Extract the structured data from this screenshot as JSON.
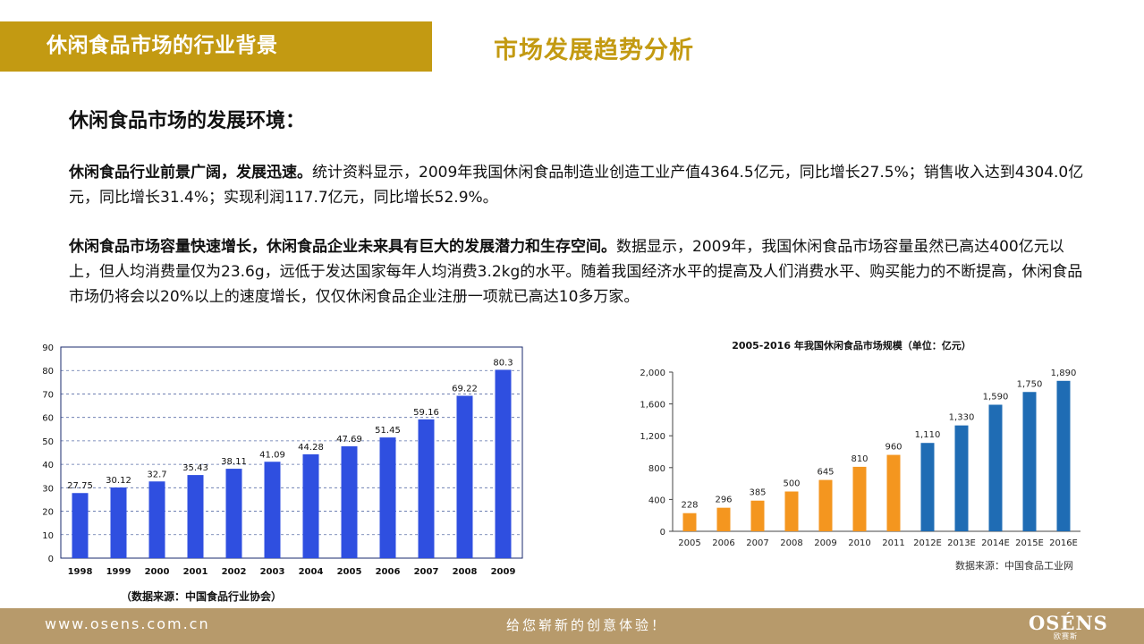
{
  "header": {
    "title": "休闲食品市场的行业背景"
  },
  "page": {
    "title": "市场发展趋势分析",
    "heading": "休闲食品市场的发展环境："
  },
  "paragraphs": [
    {
      "lead": "休闲食品行业前景广阔，发展迅速。",
      "body": "统计资料显示，2009年我国休闲食品制造业创造工业产值4364.5亿元，同比增长27.5%；销售收入达到4304.0亿元，同比增长31.4%；实现利润117.7亿元，同比增长52.9%。"
    },
    {
      "lead": "休闲食品市场容量快速增长，休闲食品企业未来具有巨大的发展潜力和生存空间。",
      "body": "数据显示，2009年，我国休闲食品市场容量虽然已高达400亿元以上，但人均消费量仅为23.6g，远低于发达国家每年人均消费3.2kg的水平。随着我国经济水平的提高及人们消费水平、购买能力的不断提高，休闲食品市场仍将会以20%以上的速度增长，仅仅休闲食品企业注册一项就已高达10多万家。"
    }
  ],
  "chart_data": [
    {
      "type": "bar",
      "title": "",
      "xlabel": "",
      "ylabel": "",
      "categories": [
        "1998",
        "1999",
        "2000",
        "2001",
        "2002",
        "2003",
        "2004",
        "2005",
        "2006",
        "2007",
        "2008",
        "2009"
      ],
      "values": [
        27.75,
        30.12,
        32.7,
        35.43,
        38.11,
        41.09,
        44.28,
        47.69,
        51.45,
        59.16,
        69.22,
        80.3
      ],
      "value_labels": [
        "27.75",
        "30.12",
        "32.7",
        "35.43",
        "38.11",
        "41.09",
        "44.28",
        "47.69",
        "51.45",
        "59.16",
        "69.22",
        "80.3"
      ],
      "y_ticks": [
        0,
        10,
        20,
        30,
        40,
        50,
        60,
        70,
        80,
        90
      ],
      "ylim": [
        0,
        90
      ],
      "grid": true,
      "source": "（数据来源：中国食品行业协会）",
      "colors": {
        "bar": "#2f4fe0",
        "frame": "#1a2a6c",
        "grid": "#5a6fa8"
      }
    },
    {
      "type": "bar",
      "title": "2005-2016 年我国休闲食品市场规模（单位：亿元）",
      "xlabel": "",
      "ylabel": "",
      "categories": [
        "2005",
        "2006",
        "2007",
        "2008",
        "2009",
        "2010",
        "2011",
        "2012E",
        "2013E",
        "2014E",
        "2015E",
        "2016E"
      ],
      "values": [
        228,
        296,
        385,
        500,
        645,
        810,
        960,
        1110,
        1330,
        1590,
        1750,
        1890
      ],
      "value_labels": [
        "228",
        "296",
        "385",
        "500",
        "645",
        "810",
        "960",
        "1,110",
        "1,330",
        "1,590",
        "1,750",
        "1,890"
      ],
      "y_ticks": [
        0,
        400,
        800,
        1200,
        1600,
        2000
      ],
      "y_tick_labels": [
        "0",
        "400",
        "800",
        "1,200",
        "1,600",
        "2,000"
      ],
      "ylim": [
        0,
        2000
      ],
      "grid": false,
      "source": "数据来源：中国食品工业网",
      "colors": {
        "actual": "#f4961f",
        "forecast": "#1f6cb4",
        "axis": "#444444"
      },
      "forecast_from_index": 7
    }
  ],
  "footer": {
    "url": "www.osens.com.cn",
    "slogan": "给您崭新的创意体验！",
    "logo": "OSÉNS",
    "logo_sub": "欧赛斯"
  }
}
